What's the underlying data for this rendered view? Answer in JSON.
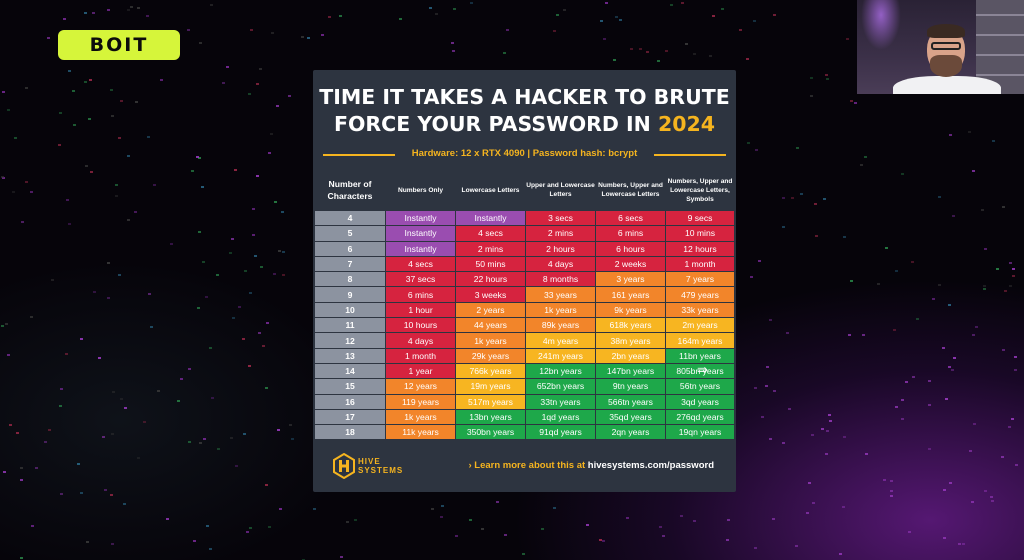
{
  "brand": {
    "logo_text": "BOIT",
    "accent": "#d6f53a"
  },
  "card": {
    "title_line1": "TIME IT TAKES A HACKER TO BRUTE",
    "title_line2_prefix": "FORCE YOUR PASSWORD IN ",
    "title_year": "2024",
    "hardware": "Hardware: 12 x RTX 4090 | Password hash: bcrypt",
    "headers": [
      "Number of Characters",
      "Numbers Only",
      "Lowercase Letters",
      "Upper and Lowercase Letters",
      "Numbers, Upper and Lowercase Letters",
      "Numbers, Upper and Lowercase Letters, Symbols"
    ],
    "rows": [
      {
        "n": "4",
        "cells": [
          {
            "t": "Instantly",
            "c": "purple"
          },
          {
            "t": "Instantly",
            "c": "purple"
          },
          {
            "t": "3 secs",
            "c": "red"
          },
          {
            "t": "6 secs",
            "c": "red"
          },
          {
            "t": "9 secs",
            "c": "red"
          }
        ]
      },
      {
        "n": "5",
        "cells": [
          {
            "t": "Instantly",
            "c": "purple"
          },
          {
            "t": "4 secs",
            "c": "red"
          },
          {
            "t": "2 mins",
            "c": "red"
          },
          {
            "t": "6 mins",
            "c": "red"
          },
          {
            "t": "10 mins",
            "c": "red"
          }
        ]
      },
      {
        "n": "6",
        "cells": [
          {
            "t": "Instantly",
            "c": "purple"
          },
          {
            "t": "2 mins",
            "c": "red"
          },
          {
            "t": "2 hours",
            "c": "red"
          },
          {
            "t": "6 hours",
            "c": "red"
          },
          {
            "t": "12 hours",
            "c": "red"
          }
        ]
      },
      {
        "n": "7",
        "cells": [
          {
            "t": "4 secs",
            "c": "red"
          },
          {
            "t": "50 mins",
            "c": "red"
          },
          {
            "t": "4 days",
            "c": "red"
          },
          {
            "t": "2 weeks",
            "c": "red"
          },
          {
            "t": "1 month",
            "c": "red"
          }
        ]
      },
      {
        "n": "8",
        "cells": [
          {
            "t": "37 secs",
            "c": "red"
          },
          {
            "t": "22 hours",
            "c": "red"
          },
          {
            "t": "8 months",
            "c": "red"
          },
          {
            "t": "3 years",
            "c": "orange"
          },
          {
            "t": "7 years",
            "c": "orange"
          }
        ]
      },
      {
        "n": "9",
        "cells": [
          {
            "t": "6 mins",
            "c": "red"
          },
          {
            "t": "3 weeks",
            "c": "red"
          },
          {
            "t": "33 years",
            "c": "orange"
          },
          {
            "t": "161 years",
            "c": "orange"
          },
          {
            "t": "479 years",
            "c": "orange"
          }
        ]
      },
      {
        "n": "10",
        "cells": [
          {
            "t": "1 hour",
            "c": "red"
          },
          {
            "t": "2 years",
            "c": "orange"
          },
          {
            "t": "1k years",
            "c": "orange"
          },
          {
            "t": "9k years",
            "c": "orange"
          },
          {
            "t": "33k years",
            "c": "orange"
          }
        ]
      },
      {
        "n": "11",
        "cells": [
          {
            "t": "10 hours",
            "c": "red"
          },
          {
            "t": "44 years",
            "c": "orange"
          },
          {
            "t": "89k years",
            "c": "orange"
          },
          {
            "t": "618k years",
            "c": "yellow"
          },
          {
            "t": "2m years",
            "c": "yellow"
          }
        ]
      },
      {
        "n": "12",
        "cells": [
          {
            "t": "4 days",
            "c": "red"
          },
          {
            "t": "1k years",
            "c": "orange"
          },
          {
            "t": "4m years",
            "c": "yellow"
          },
          {
            "t": "38m years",
            "c": "yellow"
          },
          {
            "t": "164m years",
            "c": "yellow"
          }
        ]
      },
      {
        "n": "13",
        "cells": [
          {
            "t": "1 month",
            "c": "red"
          },
          {
            "t": "29k years",
            "c": "orange"
          },
          {
            "t": "241m years",
            "c": "yellow"
          },
          {
            "t": "2bn years",
            "c": "yellow"
          },
          {
            "t": "11bn years",
            "c": "green"
          }
        ]
      },
      {
        "n": "14",
        "cells": [
          {
            "t": "1 year",
            "c": "red"
          },
          {
            "t": "766k years",
            "c": "yellow"
          },
          {
            "t": "12bn years",
            "c": "green"
          },
          {
            "t": "147bn years",
            "c": "green"
          },
          {
            "t": "805bn years",
            "c": "green"
          }
        ]
      },
      {
        "n": "15",
        "cells": [
          {
            "t": "12 years",
            "c": "orange"
          },
          {
            "t": "19m years",
            "c": "yellow"
          },
          {
            "t": "652bn years",
            "c": "green"
          },
          {
            "t": "9tn years",
            "c": "green"
          },
          {
            "t": "56tn years",
            "c": "green"
          }
        ]
      },
      {
        "n": "16",
        "cells": [
          {
            "t": "119 years",
            "c": "orange"
          },
          {
            "t": "517m years",
            "c": "yellow"
          },
          {
            "t": "33tn years",
            "c": "green"
          },
          {
            "t": "566tn years",
            "c": "green"
          },
          {
            "t": "3qd years",
            "c": "green"
          }
        ]
      },
      {
        "n": "17",
        "cells": [
          {
            "t": "1k years",
            "c": "orange"
          },
          {
            "t": "13bn years",
            "c": "green"
          },
          {
            "t": "1qd years",
            "c": "green"
          },
          {
            "t": "35qd years",
            "c": "green"
          },
          {
            "t": "276qd years",
            "c": "green"
          }
        ]
      },
      {
        "n": "18",
        "cells": [
          {
            "t": "11k years",
            "c": "orange"
          },
          {
            "t": "350bn years",
            "c": "green"
          },
          {
            "t": "91qd years",
            "c": "green"
          },
          {
            "t": "2qn years",
            "c": "green"
          },
          {
            "t": "19qn years",
            "c": "green"
          }
        ]
      }
    ],
    "footer": {
      "logo_text_1": "HIVE",
      "logo_text_2": "SYSTEMS",
      "learn_prefix": "› Learn more about this at ",
      "learn_site": "hivesystems.com/password"
    }
  },
  "colors": {
    "purple": "#9a4db0",
    "red": "#d6233f",
    "orange": "#f2852a",
    "yellow": "#f7b521",
    "green": "#1ea84a",
    "accent": "#f5b41f"
  },
  "cursor_glyph": "⇛"
}
